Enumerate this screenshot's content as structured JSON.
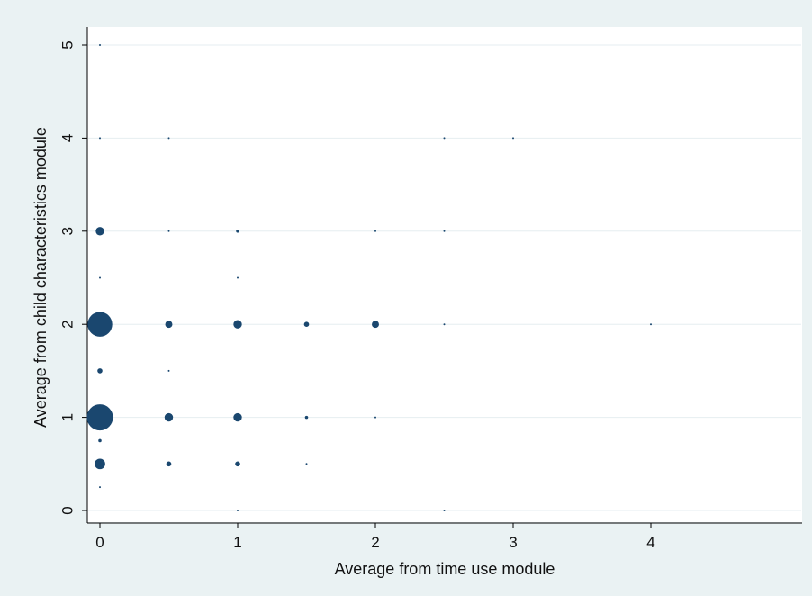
{
  "chart_data": {
    "type": "scatter",
    "title": "",
    "xlabel": "Average from time use module",
    "ylabel": "Average from child characteristics module",
    "xlim": [
      -0.1,
      5.1
    ],
    "ylim": [
      -0.2,
      5.2
    ],
    "xticks": [
      "0",
      "1",
      "2",
      "3",
      "4"
    ],
    "yticks": [
      "0",
      "1",
      "2",
      "3",
      "4",
      "5"
    ],
    "grid": "horizontal",
    "marker_color": "#1a476f",
    "points": [
      {
        "x": 0,
        "y": 5,
        "w": 0.3
      },
      {
        "x": 0,
        "y": 4,
        "w": 0.3
      },
      {
        "x": 0.5,
        "y": 4,
        "w": 0.3
      },
      {
        "x": 2.5,
        "y": 4,
        "w": 0.3
      },
      {
        "x": 3,
        "y": 4,
        "w": 0.3
      },
      {
        "x": 0,
        "y": 3,
        "w": 14
      },
      {
        "x": 0.5,
        "y": 3,
        "w": 0.3
      },
      {
        "x": 1,
        "y": 3,
        "w": 2
      },
      {
        "x": 2,
        "y": 3,
        "w": 0.3
      },
      {
        "x": 2.5,
        "y": 3,
        "w": 0.3
      },
      {
        "x": 0,
        "y": 2.5,
        "w": 0.3
      },
      {
        "x": 1,
        "y": 2.5,
        "w": 0.3
      },
      {
        "x": 0,
        "y": 2,
        "w": 120
      },
      {
        "x": 0.5,
        "y": 2,
        "w": 10
      },
      {
        "x": 1,
        "y": 2,
        "w": 14
      },
      {
        "x": 1.5,
        "y": 2,
        "w": 5
      },
      {
        "x": 2,
        "y": 2,
        "w": 10
      },
      {
        "x": 2.5,
        "y": 2,
        "w": 0.3
      },
      {
        "x": 4,
        "y": 2,
        "w": 0.3
      },
      {
        "x": 0,
        "y": 1.5,
        "w": 5
      },
      {
        "x": 0.5,
        "y": 1.5,
        "w": 0.3
      },
      {
        "x": 0,
        "y": 1,
        "w": 135
      },
      {
        "x": 0.5,
        "y": 1,
        "w": 14
      },
      {
        "x": 1,
        "y": 1,
        "w": 14
      },
      {
        "x": 1.5,
        "y": 1,
        "w": 2
      },
      {
        "x": 2,
        "y": 1,
        "w": 0.5
      },
      {
        "x": 0,
        "y": 0.75,
        "w": 2
      },
      {
        "x": 0,
        "y": 0.5,
        "w": 22
      },
      {
        "x": 0.5,
        "y": 0.5,
        "w": 5
      },
      {
        "x": 1,
        "y": 0.5,
        "w": 5
      },
      {
        "x": 1.5,
        "y": 0.5,
        "w": 0.3
      },
      {
        "x": 0,
        "y": 0.25,
        "w": 0.3
      },
      {
        "x": 1,
        "y": 0,
        "w": 0.3
      },
      {
        "x": 2.5,
        "y": 0,
        "w": 0.3
      }
    ]
  }
}
